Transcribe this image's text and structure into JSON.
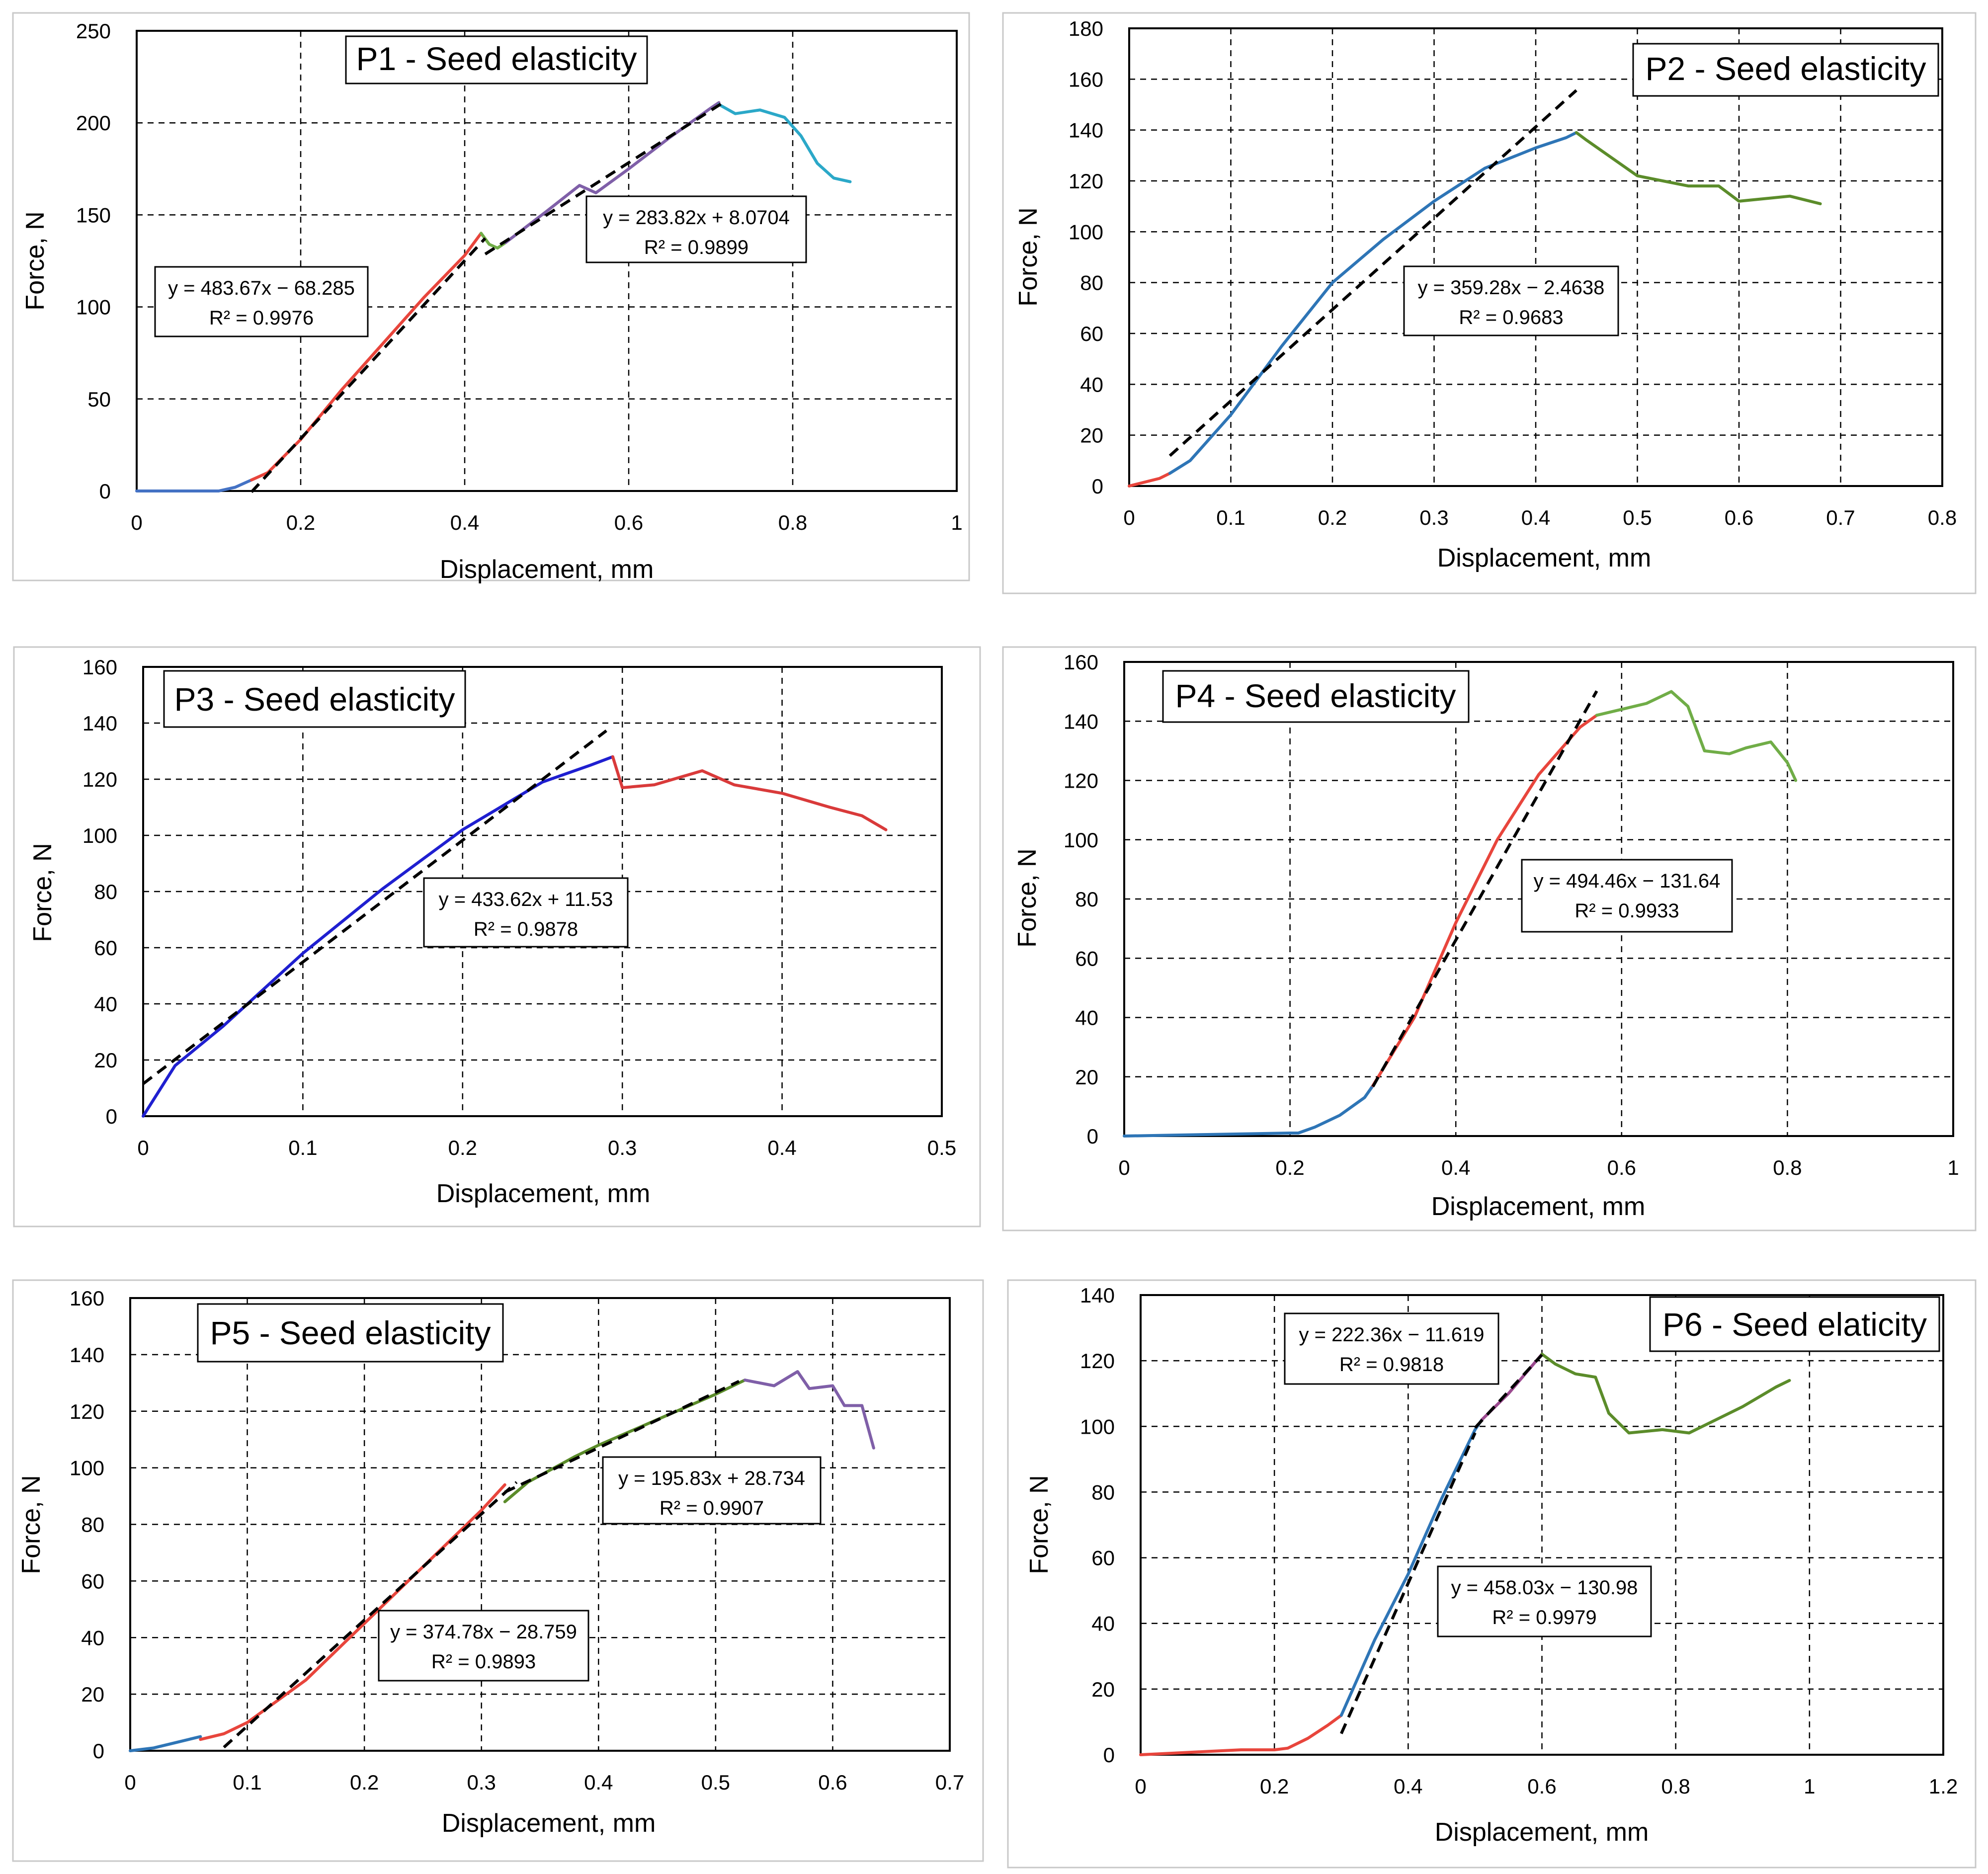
{
  "chart_data": [
    {
      "type": "line",
      "title": "P1 - Seed elasticity",
      "xlabel": "Displacement, mm",
      "ylabel": "Force, N",
      "xlim": [
        0,
        1
      ],
      "ylim": [
        0,
        250
      ],
      "xticks": [
        0,
        0.2,
        0.4,
        0.6,
        0.8,
        1
      ],
      "yticks": [
        0,
        50,
        100,
        150,
        200,
        250
      ],
      "xtick_labels": [
        "0",
        "0.2",
        "0.4",
        "0.6",
        "0.8",
        "1"
      ],
      "ytick_labels": [
        "0",
        "50",
        "100",
        "150",
        "200",
        "250"
      ],
      "series": [
        {
          "name": "segment-1",
          "color": "#4472c4",
          "x": [
            0,
            0.05,
            0.1,
            0.11,
            0.12,
            0.13,
            0.14
          ],
          "y": [
            0,
            0,
            0,
            1,
            2,
            4,
            6
          ]
        },
        {
          "name": "segment-2",
          "color": "#e8453c",
          "x": [
            0.14,
            0.16,
            0.2,
            0.25,
            0.3,
            0.35,
            0.4,
            0.42
          ],
          "y": [
            6,
            10,
            28,
            55,
            80,
            105,
            128,
            140
          ]
        },
        {
          "name": "segment-3",
          "color": "#70ad47",
          "x": [
            0.42,
            0.43,
            0.44,
            0.45
          ],
          "y": [
            140,
            134,
            132,
            135
          ]
        },
        {
          "name": "segment-4",
          "color": "#7f5fa8",
          "x": [
            0.45,
            0.5,
            0.54,
            0.56,
            0.6,
            0.65,
            0.7,
            0.71
          ],
          "y": [
            135,
            152,
            166,
            162,
            175,
            192,
            208,
            211
          ]
        },
        {
          "name": "segment-5",
          "color": "#2ba8c8",
          "x": [
            0.71,
            0.73,
            0.76,
            0.79,
            0.81,
            0.83,
            0.85,
            0.87
          ],
          "y": [
            210,
            205,
            207,
            203,
            193,
            178,
            170,
            168
          ]
        }
      ],
      "trendlines": [
        {
          "x": [
            0.14,
            0.425
          ],
          "y": [
            -0.57,
            137.27
          ]
        },
        {
          "x": [
            0.425,
            0.715
          ],
          "y": [
            128.69,
            210.99
          ]
        }
      ],
      "annotations": [
        {
          "equation": "y = 483.67x − 68.285",
          "r2": "R² = 0.9976"
        },
        {
          "equation": "y = 283.82x + 8.0704",
          "r2": "R² = 0.9899"
        }
      ]
    },
    {
      "type": "line",
      "title": "P2 - Seed elasticity",
      "xlabel": "Displacement, mm",
      "ylabel": "Force, N",
      "xlim": [
        0,
        0.8
      ],
      "ylim": [
        0,
        180
      ],
      "xticks": [
        0,
        0.1,
        0.2,
        0.3,
        0.4,
        0.5,
        0.6,
        0.7,
        0.8
      ],
      "yticks": [
        0,
        20,
        40,
        60,
        80,
        100,
        120,
        140,
        160,
        180
      ],
      "xtick_labels": [
        "0",
        "0.1",
        "0.2",
        "0.3",
        "0.4",
        "0.5",
        "0.6",
        "0.7",
        "0.8"
      ],
      "ytick_labels": [
        "0",
        "20",
        "40",
        "60",
        "80",
        "100",
        "120",
        "140",
        "160",
        "180"
      ],
      "series": [
        {
          "name": "segment-1",
          "color": "#e8453c",
          "x": [
            0,
            0.01,
            0.03,
            0.04
          ],
          "y": [
            0,
            1,
            3,
            5
          ]
        },
        {
          "name": "segment-2",
          "color": "#2e75b6",
          "x": [
            0.04,
            0.06,
            0.1,
            0.15,
            0.2,
            0.25,
            0.3,
            0.35,
            0.4,
            0.43,
            0.44
          ],
          "y": [
            5,
            10,
            28,
            55,
            80,
            97,
            112,
            125,
            133,
            137,
            139
          ]
        },
        {
          "name": "segment-3",
          "color": "#5b8c2a",
          "x": [
            0.44,
            0.45,
            0.5,
            0.55,
            0.58,
            0.6,
            0.65,
            0.68
          ],
          "y": [
            139,
            136,
            122,
            118,
            118,
            112,
            114,
            111
          ]
        }
      ],
      "trendlines": [
        {
          "x": [
            0.04,
            0.44
          ],
          "y": [
            11.91,
            155.62
          ]
        }
      ],
      "annotations": [
        {
          "equation": "y = 359.28x − 2.4638",
          "r2": "R² = 0.9683"
        }
      ]
    },
    {
      "type": "line",
      "title": "P3 - Seed elasticity",
      "xlabel": "Displacement, mm",
      "ylabel": "Force, N",
      "xlim": [
        0,
        0.5
      ],
      "ylim": [
        0,
        160
      ],
      "xticks": [
        0,
        0.1,
        0.2,
        0.3,
        0.4,
        0.5
      ],
      "yticks": [
        0,
        20,
        40,
        60,
        80,
        100,
        120,
        140,
        160
      ],
      "xtick_labels": [
        "0",
        "0.1",
        "0.2",
        "0.3",
        "0.4",
        "0.5"
      ],
      "ytick_labels": [
        "0",
        "20",
        "40",
        "60",
        "80",
        "100",
        "120",
        "140",
        "160"
      ],
      "series": [
        {
          "name": "segment-1",
          "color": "#1f1fd0",
          "x": [
            0,
            0.02,
            0.05,
            0.1,
            0.15,
            0.2,
            0.25,
            0.28,
            0.294
          ],
          "y": [
            0,
            18,
            32,
            58,
            81,
            102,
            119,
            125,
            128
          ]
        },
        {
          "name": "segment-2",
          "color": "#d93a3a",
          "x": [
            0.294,
            0.3,
            0.32,
            0.35,
            0.37,
            0.4,
            0.43,
            0.45,
            0.465
          ],
          "y": [
            128,
            117,
            118,
            123,
            118,
            115,
            110,
            107,
            102
          ]
        }
      ],
      "trendlines": [
        {
          "x": [
            0,
            0.29
          ],
          "y": [
            11.53,
            137.28
          ]
        }
      ],
      "annotations": [
        {
          "equation": "y = 433.62x + 11.53",
          "r2": "R² = 0.9878"
        }
      ]
    },
    {
      "type": "line",
      "title": "P4 - Seed elasticity",
      "xlabel": "Displacement, mm",
      "ylabel": "Force, N",
      "xlim": [
        0,
        1
      ],
      "ylim": [
        0,
        160
      ],
      "xticks": [
        0,
        0.2,
        0.4,
        0.6,
        0.8,
        1
      ],
      "yticks": [
        0,
        20,
        40,
        60,
        80,
        100,
        120,
        140,
        160
      ],
      "xtick_labels": [
        "0",
        "0.2",
        "0.4",
        "0.6",
        "0.8",
        "1"
      ],
      "ytick_labels": [
        "0",
        "20",
        "40",
        "60",
        "80",
        "100",
        "120",
        "140",
        "160"
      ],
      "series": [
        {
          "name": "segment-1",
          "color": "#2e75b6",
          "x": [
            0,
            0.1,
            0.2,
            0.21,
            0.23,
            0.26,
            0.29,
            0.3
          ],
          "y": [
            0,
            0.5,
            1,
            1,
            3,
            7,
            13,
            17
          ]
        },
        {
          "name": "segment-2",
          "color": "#e8453c",
          "x": [
            0.3,
            0.35,
            0.4,
            0.45,
            0.5,
            0.55,
            0.57
          ],
          "y": [
            17,
            40,
            72,
            100,
            122,
            138,
            142
          ]
        },
        {
          "name": "segment-3",
          "color": "#70ad47",
          "x": [
            0.57,
            0.6,
            0.63,
            0.66,
            0.68,
            0.7,
            0.73,
            0.75,
            0.78,
            0.8,
            0.81
          ],
          "y": [
            142,
            144,
            146,
            150,
            145,
            130,
            129,
            131,
            133,
            126,
            120
          ]
        }
      ],
      "trendlines": [
        {
          "x": [
            0.3,
            0.57
          ],
          "y": [
            16.7,
            150.18
          ]
        }
      ],
      "annotations": [
        {
          "equation": "y = 494.46x − 131.64",
          "r2": "R² = 0.9933"
        }
      ]
    },
    {
      "type": "line",
      "title": "P5 - Seed elasticity",
      "xlabel": "Displacement, mm",
      "ylabel": "Force, N",
      "xlim": [
        0,
        0.7
      ],
      "ylim": [
        0,
        160
      ],
      "xticks": [
        0,
        0.1,
        0.2,
        0.3,
        0.4,
        0.5,
        0.6,
        0.7
      ],
      "yticks": [
        0,
        20,
        40,
        60,
        80,
        100,
        120,
        140,
        160
      ],
      "xtick_labels": [
        "0",
        "0.1",
        "0.2",
        "0.3",
        "0.4",
        "0.5",
        "0.6",
        "0.7"
      ],
      "ytick_labels": [
        "0",
        "20",
        "40",
        "60",
        "80",
        "100",
        "120",
        "140",
        "160"
      ],
      "series": [
        {
          "name": "segment-1",
          "color": "#2e75b6",
          "x": [
            0,
            0.02,
            0.04,
            0.06
          ],
          "y": [
            0,
            1,
            3,
            5
          ]
        },
        {
          "name": "segment-2",
          "color": "#e8453c",
          "x": [
            0.06,
            0.08,
            0.1,
            0.15,
            0.2,
            0.25,
            0.3,
            0.32
          ],
          "y": [
            4,
            6,
            10,
            25,
            45,
            65,
            85,
            94
          ]
        },
        {
          "name": "segment-3",
          "color": "#5b8c2a",
          "x": [
            0.32,
            0.34,
            0.38,
            0.4,
            0.45,
            0.5,
            0.525
          ],
          "y": [
            88,
            95,
            104,
            108,
            117,
            126,
            131
          ]
        },
        {
          "name": "segment-4",
          "color": "#7f5fa8",
          "x": [
            0.525,
            0.55,
            0.57,
            0.58,
            0.6,
            0.61,
            0.625,
            0.635
          ],
          "y": [
            131,
            129,
            134,
            128,
            129,
            122,
            122,
            107
          ]
        }
      ],
      "trendlines": [
        {
          "x": [
            0.08,
            0.33
          ],
          "y": [
            1.22,
            94.92
          ]
        },
        {
          "x": [
            0.32,
            0.52
          ],
          "y": [
            91.4,
            130.57
          ]
        }
      ],
      "annotations": [
        {
          "equation": "y = 374.78x − 28.759",
          "r2": "R² = 0.9893"
        },
        {
          "equation": "y = 195.83x + 28.734",
          "r2": "R² = 0.9907"
        }
      ]
    },
    {
      "type": "line",
      "title": "P6 - Seed elaticity",
      "xlabel": "Displacement, mm",
      "ylabel": "Force, N",
      "xlim": [
        0,
        1.2
      ],
      "ylim": [
        0,
        140
      ],
      "xticks": [
        0,
        0.2,
        0.4,
        0.6,
        0.8,
        1,
        1.2
      ],
      "yticks": [
        0,
        20,
        40,
        60,
        80,
        100,
        120,
        140
      ],
      "xtick_labels": [
        "0",
        "0.2",
        "0.4",
        "0.6",
        "0.8",
        "1",
        "1.2"
      ],
      "ytick_labels": [
        "0",
        "20",
        "40",
        "60",
        "80",
        "100",
        "120",
        "140"
      ],
      "series": [
        {
          "name": "segment-1",
          "color": "#e8453c",
          "x": [
            0,
            0.05,
            0.1,
            0.15,
            0.2,
            0.22,
            0.25,
            0.28,
            0.3
          ],
          "y": [
            0,
            0.5,
            1,
            1.5,
            1.5,
            2,
            5,
            9,
            12
          ]
        },
        {
          "name": "segment-2",
          "color": "#2e75b6",
          "x": [
            0.3,
            0.35,
            0.4,
            0.45,
            0.5,
            0.51
          ],
          "y": [
            12,
            35,
            55,
            78,
            99,
            102
          ]
        },
        {
          "name": "segment-3",
          "color": "#9b4a8f",
          "x": [
            0.51,
            0.55,
            0.6
          ],
          "y": [
            102,
            110,
            122
          ]
        },
        {
          "name": "segment-4",
          "color": "#5b8c2a",
          "x": [
            0.6,
            0.62,
            0.65,
            0.68,
            0.7,
            0.73,
            0.78,
            0.82,
            0.86,
            0.9,
            0.95,
            0.97
          ],
          "y": [
            122,
            119,
            116,
            115,
            104,
            98,
            99,
            98,
            102,
            106,
            112,
            114
          ]
        }
      ],
      "trendlines": [
        {
          "x": [
            0.3,
            0.5
          ],
          "y": [
            6.43,
            98.04
          ]
        },
        {
          "x": [
            0.5,
            0.6
          ],
          "y": [
            99.56,
            121.8
          ]
        }
      ],
      "annotations": [
        {
          "equation": "y = 222.36x − 11.619",
          "r2": "R² = 0.9818"
        },
        {
          "equation": "y = 458.03x − 130.98",
          "r2": "R² = 0.9979"
        }
      ]
    }
  ]
}
